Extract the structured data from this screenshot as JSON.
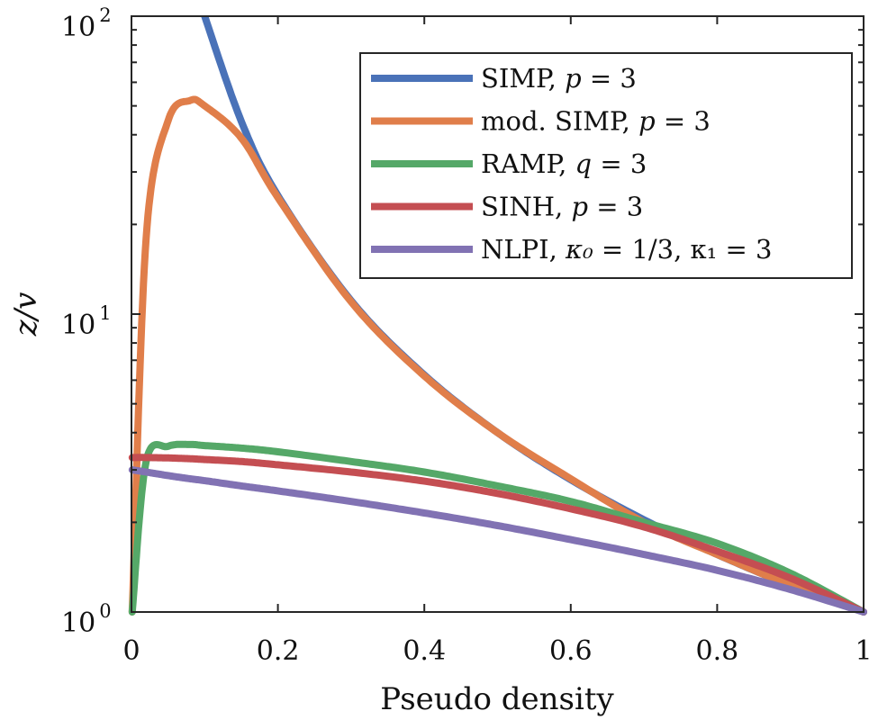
{
  "chart_data": {
    "type": "line",
    "title": "",
    "xlabel": "Pseudo density",
    "ylabel": "z/v",
    "xlim": [
      0,
      1
    ],
    "ylim": [
      1,
      100
    ],
    "yscale": "log",
    "xticks": [
      "0",
      "0.2",
      "0.4",
      "0.6",
      "0.8",
      "1"
    ],
    "xtick_values": [
      0,
      0.2,
      0.4,
      0.6,
      0.8,
      1
    ],
    "yticks": [
      {
        "base": "10",
        "exp": "0",
        "value": 1
      },
      {
        "base": "10",
        "exp": "1",
        "value": 10
      },
      {
        "base": "10",
        "exp": "2",
        "value": 100
      }
    ],
    "grid": false,
    "legend_position": "top-right",
    "x": [
      0.001,
      0.02,
      0.05,
      0.08,
      0.1,
      0.15,
      0.2,
      0.3,
      0.4,
      0.5,
      0.6,
      0.7,
      0.8,
      0.9,
      1.0
    ],
    "series": [
      {
        "name": "SIMP, p = 3",
        "color": "#4a72b8",
        "values": [
          null,
          null,
          null,
          null,
          100,
          44.4,
          25,
          11.1,
          6.25,
          4,
          2.78,
          2.04,
          1.56,
          1.23,
          1
        ]
      },
      {
        "name": "mod. SIMP, p = 3",
        "color": "#e07e4a",
        "values": [
          1.0,
          18.0,
          44.6,
          52.1,
          50.0,
          39.0,
          24.6,
          11.0,
          6.2,
          4.0,
          2.8,
          2.0,
          1.56,
          1.23,
          1
        ]
      },
      {
        "name": "RAMP, q = 3",
        "color": "#55a868",
        "values": [
          1.0,
          3.2,
          3.6,
          3.65,
          3.62,
          3.55,
          3.45,
          3.2,
          2.95,
          2.65,
          2.35,
          2.0,
          1.7,
          1.35,
          1
        ]
      },
      {
        "name": "SINH, p = 3",
        "color": "#c44e52",
        "values": [
          3.3,
          3.3,
          3.29,
          3.27,
          3.25,
          3.2,
          3.12,
          2.95,
          2.75,
          2.5,
          2.22,
          1.93,
          1.6,
          1.3,
          1
        ]
      },
      {
        "name": "NLPI, κ0 = 1/3, κ1 = 3",
        "color": "#8172b3",
        "values": [
          3.0,
          2.95,
          2.87,
          2.8,
          2.76,
          2.65,
          2.55,
          2.35,
          2.15,
          1.95,
          1.75,
          1.56,
          1.38,
          1.19,
          1
        ]
      }
    ]
  },
  "legend": [
    {
      "label": "SIMP, ",
      "var": "p",
      "rest": " = 3",
      "color": "#4a72b8"
    },
    {
      "label": "mod. SIMP, ",
      "var": "p",
      "rest": " = 3",
      "color": "#e07e4a"
    },
    {
      "label": "RAMP, ",
      "var": "q",
      "rest": " = 3",
      "color": "#55a868"
    },
    {
      "label": "SINH, ",
      "var": "p",
      "rest": " = 3",
      "color": "#c44e52"
    },
    {
      "label": "NLPI, ",
      "var": "κ₀",
      "rest": " = 1/3, κ₁ = 3",
      "color": "#8172b3"
    }
  ]
}
